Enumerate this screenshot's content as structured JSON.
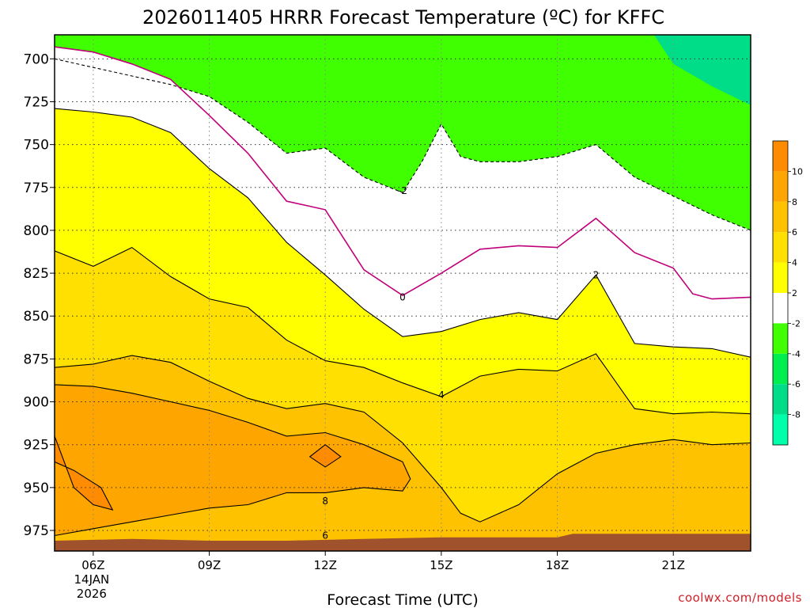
{
  "chart_data": {
    "type": "heatmap",
    "title": "2026011405 HRRR Forecast Temperature (ºC) for KFFC",
    "xlabel": "Forecast Time (UTC)",
    "ylabel": "",
    "x_ticks": [
      {
        "hour": 6,
        "label": "06Z",
        "sub": [
          "14JAN",
          "2026"
        ]
      },
      {
        "hour": 9,
        "label": "09Z"
      },
      {
        "hour": 12,
        "label": "12Z"
      },
      {
        "hour": 15,
        "label": "15Z"
      },
      {
        "hour": 18,
        "label": "18Z"
      },
      {
        "hour": 21,
        "label": "21Z"
      }
    ],
    "xlim": [
      5,
      23
    ],
    "y_ticks": [
      700,
      725,
      750,
      775,
      800,
      825,
      850,
      875,
      900,
      925,
      950,
      975
    ],
    "ylim_hpa": [
      686,
      987
    ],
    "grid": true,
    "colorbar": {
      "labels": [
        "10",
        "8",
        "6",
        "4",
        "2",
        "-2",
        "-4",
        "-6",
        "-8"
      ],
      "colors": [
        "#ff8c00",
        "#ffa500",
        "#ffc200",
        "#ffe000",
        "#ffff00",
        "#ffffff",
        "#40ff00",
        "#00ee50",
        "#00dd88",
        "#00ffaa"
      ]
    },
    "contours": [
      {
        "level": -2,
        "color": "#000000",
        "dash": true,
        "points": [
          [
            5,
            700
          ],
          [
            6,
            705
          ],
          [
            7,
            710
          ],
          [
            8,
            715
          ],
          [
            9,
            722
          ],
          [
            10,
            737
          ],
          [
            11,
            755
          ],
          [
            12,
            752
          ],
          [
            13,
            769
          ],
          [
            14,
            778
          ],
          [
            14.5,
            760
          ],
          [
            15,
            738
          ],
          [
            15.5,
            757
          ],
          [
            16,
            760
          ],
          [
            17,
            760
          ],
          [
            18,
            757
          ],
          [
            19,
            750
          ],
          [
            20,
            769
          ],
          [
            21,
            780
          ],
          [
            22,
            791
          ],
          [
            23,
            800
          ]
        ],
        "label": {
          "text": "-2",
          "at": [
            14,
            777
          ]
        }
      },
      {
        "level": 0,
        "color": "#c0007a",
        "dash": false,
        "points": [
          [
            5,
            693
          ],
          [
            6,
            696
          ],
          [
            7,
            703
          ],
          [
            8,
            712
          ],
          [
            9,
            733
          ],
          [
            10,
            755
          ],
          [
            11,
            783
          ],
          [
            12,
            788
          ],
          [
            13,
            823
          ],
          [
            14,
            838
          ],
          [
            15,
            825
          ],
          [
            16,
            811
          ],
          [
            17,
            809
          ],
          [
            18,
            810
          ],
          [
            19,
            793
          ],
          [
            20,
            813
          ],
          [
            21,
            822
          ],
          [
            21.5,
            837
          ],
          [
            22,
            840
          ],
          [
            23,
            839
          ]
        ],
        "label": {
          "text": "0",
          "at": [
            14,
            839
          ]
        }
      },
      {
        "level": 2,
        "color": "#000000",
        "dash": false,
        "points": [
          [
            5,
            729
          ],
          [
            6,
            731
          ],
          [
            7,
            734
          ],
          [
            8,
            743
          ],
          [
            9,
            764
          ],
          [
            10,
            781
          ],
          [
            11,
            807
          ],
          [
            12,
            826
          ],
          [
            13,
            846
          ],
          [
            14,
            862
          ],
          [
            15,
            859
          ],
          [
            16,
            852
          ],
          [
            17,
            848
          ],
          [
            18,
            852
          ],
          [
            19,
            826
          ],
          [
            20,
            866
          ],
          [
            21,
            868
          ],
          [
            22,
            869
          ],
          [
            23,
            874
          ]
        ],
        "label": {
          "text": "2",
          "at": [
            19,
            826
          ]
        }
      },
      {
        "level": 4,
        "color": "#000000",
        "dash": false,
        "points": [
          [
            5,
            812
          ],
          [
            6,
            821
          ],
          [
            7,
            810
          ],
          [
            8,
            827
          ],
          [
            9,
            840
          ],
          [
            10,
            845
          ],
          [
            11,
            864
          ],
          [
            12,
            876
          ],
          [
            13,
            880
          ],
          [
            14,
            889
          ],
          [
            15,
            897
          ],
          [
            16,
            885
          ],
          [
            17,
            881
          ],
          [
            18,
            882
          ],
          [
            19,
            872
          ],
          [
            20,
            904
          ],
          [
            21,
            907
          ],
          [
            22,
            906
          ],
          [
            23,
            907
          ]
        ],
        "label": {
          "text": "4",
          "at": [
            15,
            896
          ]
        }
      },
      {
        "level": 6,
        "color": "#000000",
        "dash": false,
        "points": [
          [
            5,
            880
          ],
          [
            6,
            878
          ],
          [
            7,
            873
          ],
          [
            8,
            877
          ],
          [
            9,
            888
          ],
          [
            10,
            898
          ],
          [
            11,
            904
          ],
          [
            12,
            901
          ],
          [
            13,
            906
          ],
          [
            14,
            924
          ],
          [
            15,
            950
          ],
          [
            15.5,
            965
          ],
          [
            16,
            970
          ],
          [
            17,
            960
          ],
          [
            18,
            942
          ],
          [
            19,
            930
          ],
          [
            20,
            925
          ],
          [
            21,
            922
          ],
          [
            22,
            925
          ],
          [
            23,
            924
          ]
        ],
        "label": {
          "text": "6",
          "at": [
            12,
            978
          ]
        }
      },
      {
        "level": 8,
        "color": "#000000",
        "dash": false,
        "points": [
          [
            5,
            920
          ],
          [
            5.5,
            950
          ],
          [
            6,
            960
          ],
          [
            6.5,
            963
          ],
          [
            6.2,
            950
          ],
          [
            5.5,
            940
          ],
          [
            5,
            935
          ]
        ],
        "label": null
      },
      {
        "level": 8,
        "color": "#000000",
        "dash": false,
        "points": [
          [
            12,
            925
          ],
          [
            12.4,
            932
          ],
          [
            12,
            938
          ],
          [
            11.6,
            932
          ],
          [
            12,
            925
          ]
        ],
        "label": null
      },
      {
        "level": 8,
        "color": "#000000",
        "dash": false,
        "points": [
          [
            5,
            978
          ],
          [
            6,
            974
          ],
          [
            7,
            970
          ],
          [
            8,
            966
          ],
          [
            9,
            962
          ],
          [
            10,
            960
          ],
          [
            11,
            953
          ],
          [
            12,
            953
          ],
          [
            13,
            950
          ],
          [
            14,
            952
          ],
          [
            14.2,
            945
          ],
          [
            14,
            935
          ],
          [
            13,
            925
          ],
          [
            12,
            918
          ],
          [
            11,
            920
          ],
          [
            10,
            912
          ],
          [
            9,
            905
          ],
          [
            8,
            900
          ],
          [
            7,
            895
          ],
          [
            6,
            891
          ],
          [
            5,
            890
          ]
        ],
        "label": {
          "text": "8",
          "at": [
            12,
            958
          ]
        }
      }
    ],
    "terrain_color": "#a0522d"
  },
  "credit": "coolwx.com/models"
}
